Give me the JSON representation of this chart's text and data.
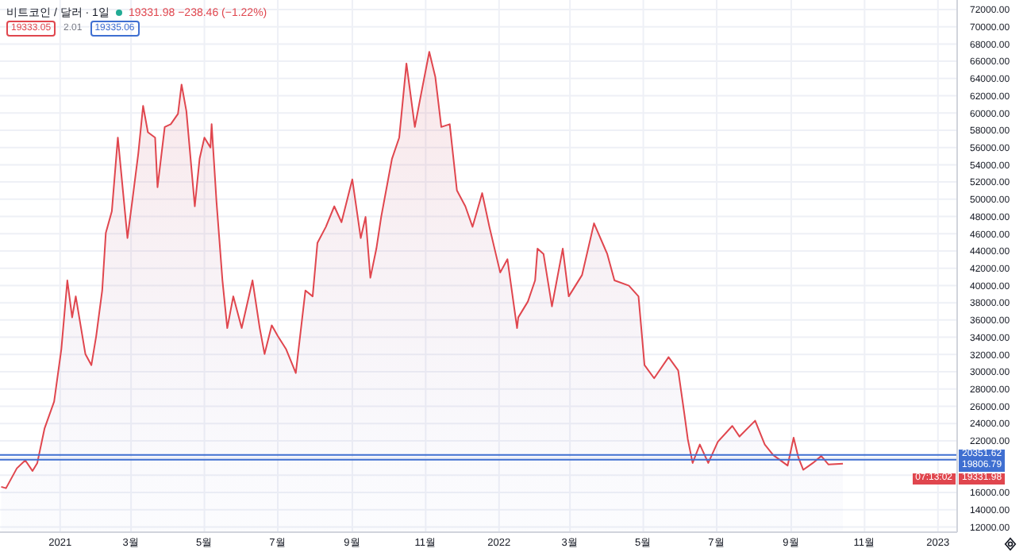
{
  "chart_data": {
    "type": "area",
    "title": "비트코인 / 달러 · 1일",
    "subtitle": "19331.98 −238.46 (−1.22%)",
    "x": [
      "2020-11-13",
      "2020-11-17",
      "2020-11-26",
      "2020-12-03",
      "2020-12-09",
      "2020-12-13",
      "2020-12-19",
      "2020-12-27",
      "2021-01-02",
      "2021-01-07",
      "2021-01-11",
      "2021-01-14",
      "2021-01-22",
      "2021-01-27",
      "2021-01-31",
      "2021-02-05",
      "2021-02-08",
      "2021-02-13",
      "2021-02-18",
      "2021-02-26",
      "2021-03-02",
      "2021-03-07",
      "2021-03-11",
      "2021-03-15",
      "2021-03-21",
      "2021-03-23",
      "2021-03-29",
      "2021-04-03",
      "2021-04-09",
      "2021-04-12",
      "2021-04-16",
      "2021-04-23",
      "2021-04-27",
      "2021-05-01",
      "2021-05-06",
      "2021-05-07",
      "2021-05-11",
      "2021-05-16",
      "2021-05-20",
      "2021-05-25",
      "2021-06-01",
      "2021-06-10",
      "2021-06-16",
      "2021-06-20",
      "2021-06-26",
      "2021-07-01",
      "2021-07-08",
      "2021-07-16",
      "2021-07-24",
      "2021-07-30",
      "2021-08-03",
      "2021-08-10",
      "2021-08-17",
      "2021-08-23",
      "2021-09-01",
      "2021-09-08",
      "2021-09-12",
      "2021-09-16",
      "2021-09-21",
      "2021-09-25",
      "2021-10-04",
      "2021-10-10",
      "2021-10-16",
      "2021-10-23",
      "2021-10-28",
      "2021-11-04",
      "2021-11-09",
      "2021-11-14",
      "2021-11-21",
      "2021-11-27",
      "2021-12-04",
      "2021-12-10",
      "2021-12-18",
      "2021-12-24",
      "2022-01-02",
      "2022-01-08",
      "2022-01-16",
      "2022-01-17",
      "2022-01-25",
      "2022-01-31",
      "2022-02-02",
      "2022-02-07",
      "2022-02-14",
      "2022-02-23",
      "2022-02-28",
      "2022-03-11",
      "2022-03-21",
      "2022-04-01",
      "2022-04-07",
      "2022-04-19",
      "2022-04-27",
      "2022-05-02",
      "2022-05-10",
      "2022-05-22",
      "2022-05-30",
      "2022-06-04",
      "2022-06-07",
      "2022-06-11",
      "2022-06-17",
      "2022-06-24",
      "2022-07-02",
      "2022-07-14",
      "2022-07-20",
      "2022-08-02",
      "2022-08-10",
      "2022-08-17",
      "2022-08-29",
      "2022-09-03",
      "2022-09-07",
      "2022-09-11",
      "2022-09-19",
      "2022-09-26",
      "2022-10-02",
      "2022-10-14"
    ],
    "series": [
      {
        "color": "#e0464e",
        "values": [
          16660,
          16500,
          18800,
          19730,
          18500,
          19420,
          23400,
          26540,
          32600,
          40590,
          36300,
          38740,
          32060,
          30770,
          34140,
          39420,
          46100,
          48600,
          57150,
          45500,
          49800,
          55300,
          60830,
          57770,
          57150,
          51400,
          58380,
          58700,
          59900,
          63300,
          60220,
          49180,
          54700,
          57150,
          56000,
          58700,
          49800,
          40590,
          35060,
          38740,
          35060,
          40590,
          35060,
          32060,
          35380,
          34140,
          32600,
          29850,
          39420,
          38740,
          44950,
          46800,
          49180,
          47340,
          52300,
          45500,
          47950,
          40900,
          44270,
          47950,
          54700,
          57150,
          65740,
          58380,
          62060,
          67090,
          64200,
          58380,
          58700,
          51020,
          49180,
          46800,
          50710,
          46800,
          41500,
          43050,
          35060,
          36300,
          38140,
          40590,
          44270,
          43660,
          37580,
          44270,
          38740,
          41200,
          47210,
          43660,
          40590,
          39980,
          38740,
          30770,
          29240,
          31690,
          30160,
          25250,
          22180,
          19420,
          21570,
          19420,
          21880,
          23720,
          22490,
          24330,
          21570,
          20340,
          19120,
          22360,
          20040,
          18630,
          19420,
          20230,
          19240,
          19331.98
        ]
      }
    ],
    "xlim": [
      "2020-11-12",
      "2023-01-17"
    ],
    "xticks": [
      {
        "value": "2021-01-01",
        "label": "2021"
      },
      {
        "value": "2021-03-01",
        "label": "3월"
      },
      {
        "value": "2021-05-01",
        "label": "5월"
      },
      {
        "value": "2021-07-01",
        "label": "7월"
      },
      {
        "value": "2021-09-01",
        "label": "9월"
      },
      {
        "value": "2021-11-01",
        "label": "11월"
      },
      {
        "value": "2022-01-01",
        "label": "2022"
      },
      {
        "value": "2022-03-01",
        "label": "3월"
      },
      {
        "value": "2022-05-01",
        "label": "5월"
      },
      {
        "value": "2022-07-01",
        "label": "7월"
      },
      {
        "value": "2022-09-01",
        "label": "9월"
      },
      {
        "value": "2022-11-01",
        "label": "11월"
      },
      {
        "value": "2023-01-01",
        "label": "2023"
      }
    ],
    "ylim": [
      11400,
      73100
    ],
    "yticks": [
      {
        "value": 12000,
        "label": "12000.00"
      },
      {
        "value": 14000,
        "label": "14000.00"
      },
      {
        "value": 16000,
        "label": "16000.00"
      },
      {
        "value": 18000,
        "label": null
      },
      {
        "value": 20000,
        "label": null
      },
      {
        "value": 22000,
        "label": "22000.00"
      },
      {
        "value": 24000,
        "label": "24000.00"
      },
      {
        "value": 26000,
        "label": "26000.00"
      },
      {
        "value": 28000,
        "label": "28000.00"
      },
      {
        "value": 30000,
        "label": "30000.00"
      },
      {
        "value": 32000,
        "label": "32000.00"
      },
      {
        "value": 34000,
        "label": "34000.00"
      },
      {
        "value": 36000,
        "label": "36000.00"
      },
      {
        "value": 38000,
        "label": "38000.00"
      },
      {
        "value": 40000,
        "label": "40000.00"
      },
      {
        "value": 42000,
        "label": "42000.00"
      },
      {
        "value": 44000,
        "label": "44000.00"
      },
      {
        "value": 46000,
        "label": "46000.00"
      },
      {
        "value": 48000,
        "label": "48000.00"
      },
      {
        "value": 50000,
        "label": "50000.00"
      },
      {
        "value": 52000,
        "label": "52000.00"
      },
      {
        "value": 54000,
        "label": "54000.00"
      },
      {
        "value": 56000,
        "label": "56000.00"
      },
      {
        "value": 58000,
        "label": "58000.00"
      },
      {
        "value": 60000,
        "label": "60000.00"
      },
      {
        "value": 62000,
        "label": "62000.00"
      },
      {
        "value": 64000,
        "label": "64000.00"
      },
      {
        "value": 66000,
        "label": "66000.00"
      },
      {
        "value": 68000,
        "label": "68000.00"
      },
      {
        "value": 70000,
        "label": "70000.00"
      },
      {
        "value": 72000,
        "label": "72000.00"
      }
    ],
    "ref_lines": [
      {
        "axis": "y",
        "value": 20351.62,
        "label": "20351.62",
        "color": "#3f6fd1"
      },
      {
        "axis": "y",
        "value": 19806.79,
        "label": "19806.79",
        "color": "#3f6fd1"
      }
    ],
    "annotations": [
      "19333.05",
      "2.01",
      "19335.06",
      "07:13:02",
      "19331.98"
    ],
    "grid": true,
    "marker": "none",
    "line_style": "solid"
  }
}
